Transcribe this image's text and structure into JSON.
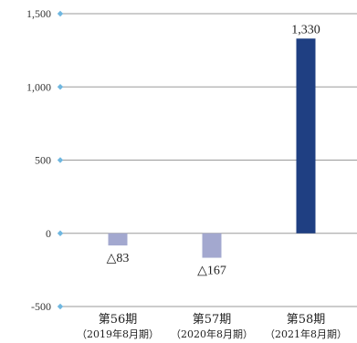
{
  "chart_data": {
    "type": "bar",
    "categories": [
      "第56期",
      "第57期",
      "第58期"
    ],
    "sublabels": [
      "（2019年8月期）",
      "（2020年8月期）",
      "（2021年8月期）"
    ],
    "values": [
      -83,
      -167,
      1330
    ],
    "data_labels": [
      "△83",
      "△167",
      "1,330"
    ],
    "yticks": [
      1500,
      1000,
      500,
      0,
      -500
    ],
    "ytick_labels": [
      "1,500",
      "1,000",
      "500",
      "0",
      "-500"
    ],
    "ylim": [
      -500,
      1500
    ],
    "grid": true,
    "colors": {
      "negative": "#a3a8cf",
      "positive": "#1f3f82",
      "grid": "#9a9a9a",
      "tick_marker": "#6fb7e0"
    }
  }
}
